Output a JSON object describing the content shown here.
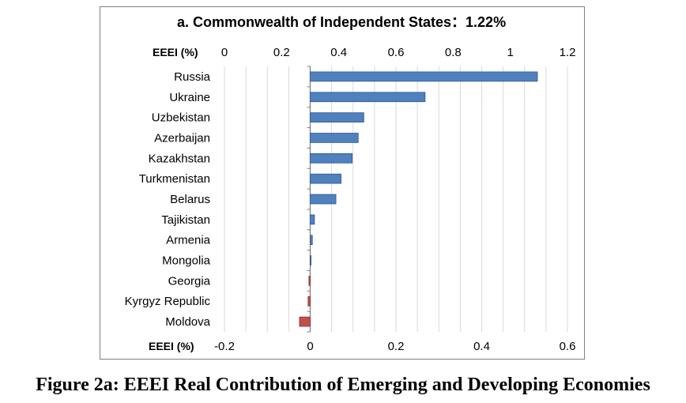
{
  "chart_data": {
    "type": "bar",
    "orientation": "horizontal",
    "title": "a. Commonwealth of Independent States：1.22%",
    "top_axis": {
      "label": "EEEI (%)",
      "ticks": [
        "0",
        "0.2",
        "0.4",
        "0.6",
        "0.8",
        "1",
        "1.2"
      ],
      "range": [
        0,
        1.2
      ]
    },
    "bottom_axis": {
      "label": "EEEI (%)",
      "ticks": [
        "-0.2",
        "0",
        "0.2",
        "0.4",
        "0.6"
      ],
      "range": [
        -0.2,
        0.6
      ]
    },
    "categories": [
      "Russia",
      "Ukraine",
      "Uzbekistan",
      "Azerbaijan",
      "Kazakhstan",
      "Turkmenistan",
      "Belarus",
      "Tajikistan",
      "Armenia",
      "Mongolia",
      "Georgia",
      "Kyrgyz Republic",
      "Moldova"
    ],
    "values": [
      0.53,
      0.268,
      0.125,
      0.112,
      0.098,
      0.072,
      0.06,
      0.01,
      0.005,
      0.002,
      -0.003,
      -0.005,
      -0.025
    ],
    "colors": {
      "positive": "#4f81bd",
      "negative": "#c0504d"
    },
    "grid": true
  },
  "caption": "Figure 2a: EEEI Real Contribution of Emerging and Developing Economies"
}
